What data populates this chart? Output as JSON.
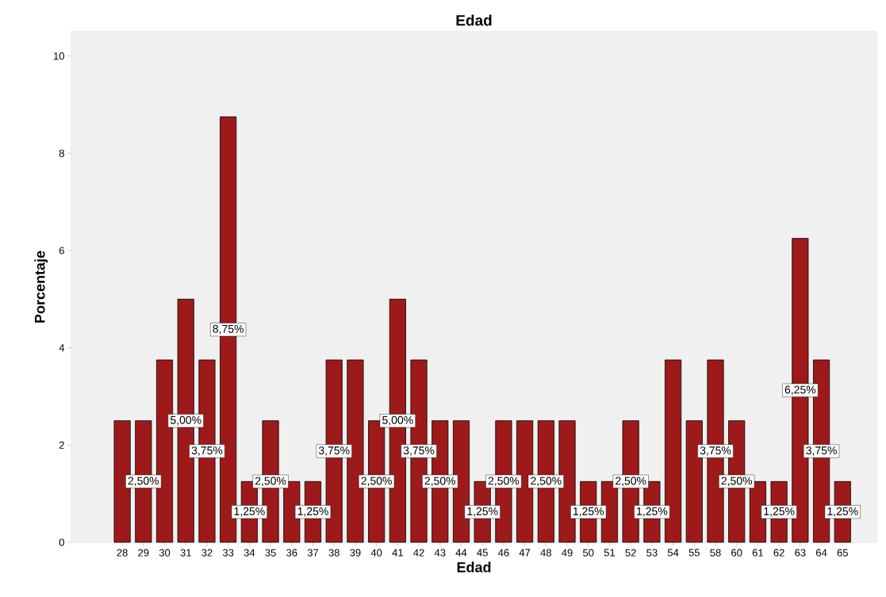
{
  "chart_data": {
    "type": "bar",
    "title": "Edad",
    "xlabel": "Edad",
    "ylabel": "Porcentaje",
    "categories": [
      "28",
      "29",
      "30",
      "31",
      "32",
      "33",
      "34",
      "35",
      "36",
      "37",
      "38",
      "39",
      "40",
      "41",
      "42",
      "43",
      "44",
      "45",
      "46",
      "47",
      "48",
      "49",
      "50",
      "51",
      "52",
      "53",
      "54",
      "55",
      "58",
      "60",
      "61",
      "62",
      "63",
      "64",
      "65"
    ],
    "values": [
      2.5,
      2.5,
      3.75,
      5,
      3.75,
      8.75,
      1.25,
      2.5,
      1.25,
      1.25,
      3.75,
      3.75,
      2.5,
      5,
      3.75,
      2.5,
      2.5,
      1.25,
      2.5,
      2.5,
      2.5,
      2.5,
      1.25,
      1.25,
      2.5,
      1.25,
      3.75,
      2.5,
      3.75,
      2.5,
      1.25,
      1.25,
      6.25,
      3.75,
      1.25
    ],
    "value_labels": [
      null,
      "2,50%",
      null,
      "5,00%",
      "3,75%",
      "8,75%",
      "1,25%",
      "2,50%",
      null,
      "1,25%",
      "3,75%",
      null,
      "2,50%",
      "5,00%",
      "3,75%",
      "2,50%",
      null,
      "1,25%",
      "2,50%",
      null,
      "2,50%",
      null,
      "1,25%",
      null,
      "2,50%",
      "1,25%",
      null,
      null,
      "3,75%",
      "2,50%",
      null,
      "1,25%",
      "6,25%",
      "3,75%",
      "1,25%"
    ],
    "color": "#9e1a1a",
    "ylim": [
      0,
      10.5
    ],
    "yticks": [
      0,
      2,
      4,
      6,
      8,
      10
    ]
  }
}
